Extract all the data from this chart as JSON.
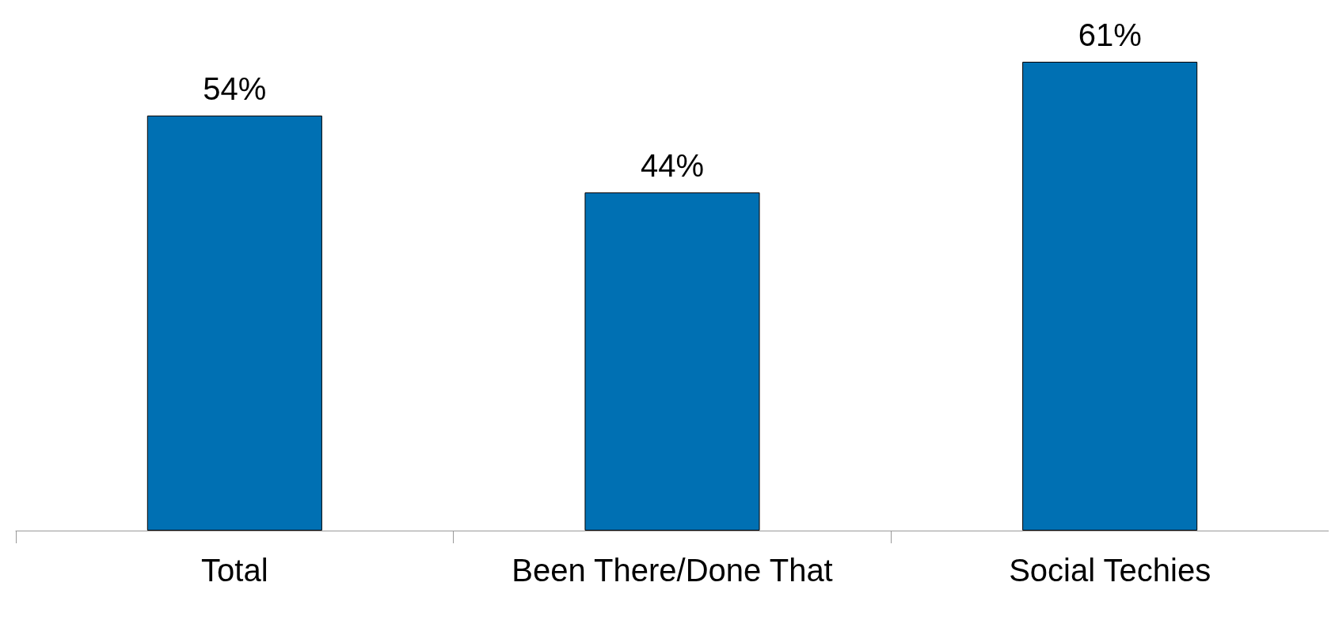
{
  "chart_data": {
    "type": "bar",
    "categories": [
      "Total",
      "Been There/Done That",
      "Social Techies"
    ],
    "values": [
      54,
      44,
      61
    ],
    "value_labels": [
      "54%",
      "44%",
      "61%"
    ],
    "color": "#0070b3"
  }
}
